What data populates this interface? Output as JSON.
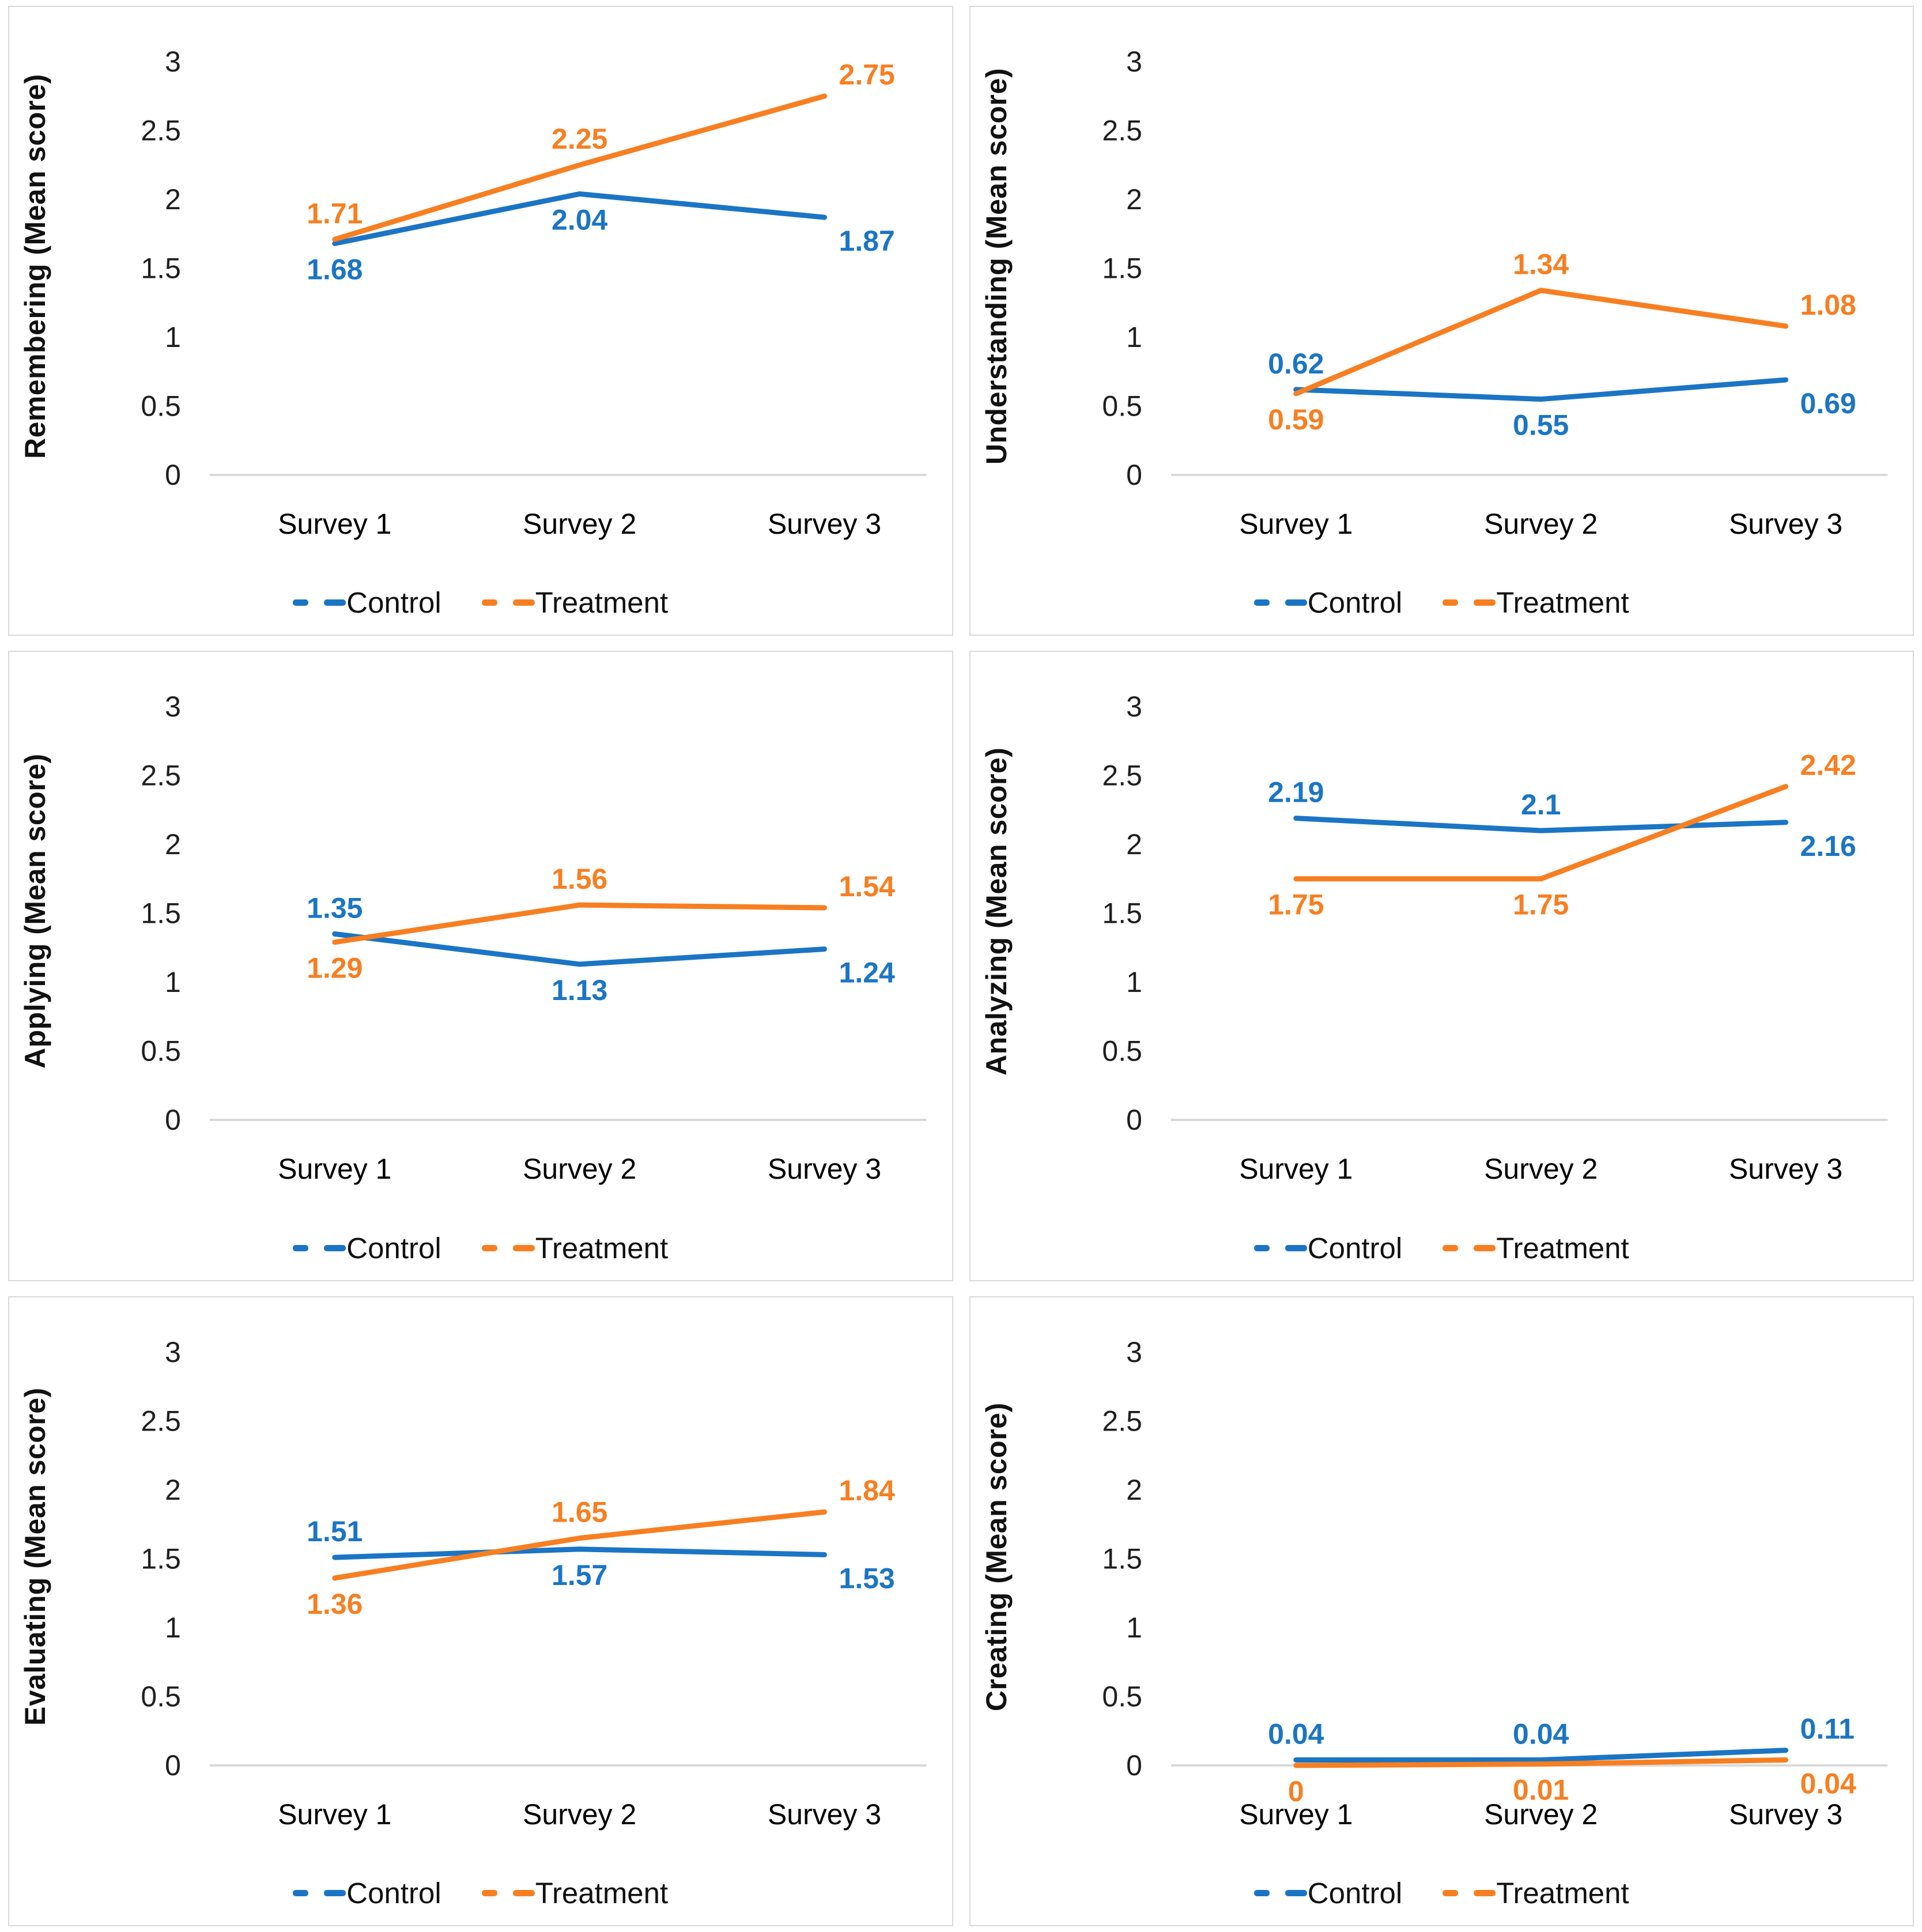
{
  "style": {
    "control_color": "#1B75C4",
    "treatment_color": "#F77F21",
    "axis_color": "#D9D9D9",
    "panel_border_color": "#D9D9D9",
    "tick_text_color": "#1F1F1F"
  },
  "chart_data": [
    {
      "type": "line",
      "ylabel": "Remembering (Mean score)",
      "categories": [
        "Survey 1",
        "Survey 2",
        "Survey 3"
      ],
      "yticks": [
        0,
        0.5,
        1,
        1.5,
        2,
        2.5,
        3
      ],
      "ylim": [
        0,
        3
      ],
      "grid": false,
      "legend_position": "bottom",
      "series": [
        {
          "name": "Control",
          "color": "#1B75C4",
          "values": [
            1.68,
            2.04,
            1.87
          ]
        },
        {
          "name": "Treatment",
          "color": "#F77F21",
          "values": [
            1.71,
            2.25,
            2.75
          ]
        }
      ]
    },
    {
      "type": "line",
      "ylabel": "Understanding (Mean score)",
      "categories": [
        "Survey 1",
        "Survey 2",
        "Survey 3"
      ],
      "yticks": [
        0,
        0.5,
        1,
        1.5,
        2,
        2.5,
        3
      ],
      "ylim": [
        0,
        3
      ],
      "grid": false,
      "legend_position": "bottom",
      "series": [
        {
          "name": "Control",
          "color": "#1B75C4",
          "values": [
            0.62,
            0.55,
            0.69
          ]
        },
        {
          "name": "Treatment",
          "color": "#F77F21",
          "values": [
            0.59,
            1.34,
            1.08
          ]
        }
      ]
    },
    {
      "type": "line",
      "ylabel": "Applying (Mean score)",
      "categories": [
        "Survey 1",
        "Survey 2",
        "Survey 3"
      ],
      "yticks": [
        0,
        0.5,
        1,
        1.5,
        2,
        2.5,
        3
      ],
      "ylim": [
        0,
        3
      ],
      "grid": false,
      "legend_position": "bottom",
      "series": [
        {
          "name": "Control",
          "color": "#1B75C4",
          "values": [
            1.35,
            1.13,
            1.24
          ]
        },
        {
          "name": "Treatment",
          "color": "#F77F21",
          "values": [
            1.29,
            1.56,
            1.54
          ]
        }
      ]
    },
    {
      "type": "line",
      "ylabel": "Analyzing (Mean score)",
      "categories": [
        "Survey 1",
        "Survey 2",
        "Survey 3"
      ],
      "yticks": [
        0,
        0.5,
        1,
        1.5,
        2,
        2.5,
        3
      ],
      "ylim": [
        0,
        3
      ],
      "grid": false,
      "legend_position": "bottom",
      "series": [
        {
          "name": "Control",
          "color": "#1B75C4",
          "values": [
            2.19,
            2.1,
            2.16
          ]
        },
        {
          "name": "Treatment",
          "color": "#F77F21",
          "values": [
            1.75,
            1.75,
            2.42
          ]
        }
      ]
    },
    {
      "type": "line",
      "ylabel": "Evaluating (Mean score)",
      "categories": [
        "Survey 1",
        "Survey 2",
        "Survey 3"
      ],
      "yticks": [
        0,
        0.5,
        1,
        1.5,
        2,
        2.5,
        3
      ],
      "ylim": [
        0,
        3
      ],
      "grid": false,
      "legend_position": "bottom",
      "series": [
        {
          "name": "Control",
          "color": "#1B75C4",
          "values": [
            1.51,
            1.57,
            1.53
          ]
        },
        {
          "name": "Treatment",
          "color": "#F77F21",
          "values": [
            1.36,
            1.65,
            1.84
          ]
        }
      ]
    },
    {
      "type": "line",
      "ylabel": "Creating (Mean score)",
      "categories": [
        "Survey 1",
        "Survey 2",
        "Survey 3"
      ],
      "yticks": [
        0,
        0.5,
        1,
        1.5,
        2,
        2.5,
        3
      ],
      "ylim": [
        0,
        3
      ],
      "grid": false,
      "legend_position": "bottom",
      "series": [
        {
          "name": "Control",
          "color": "#1B75C4",
          "values": [
            0.04,
            0.04,
            0.11
          ]
        },
        {
          "name": "Treatment",
          "color": "#F77F21",
          "values": [
            0,
            0.01,
            0.04
          ]
        }
      ]
    }
  ]
}
